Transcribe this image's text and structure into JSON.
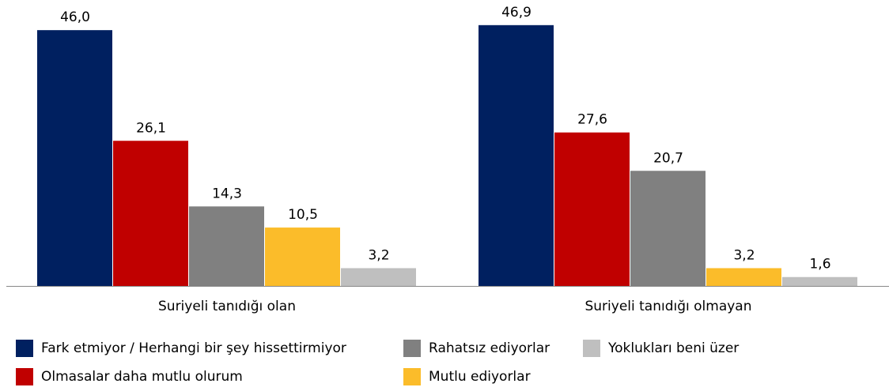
{
  "chart_data": {
    "type": "bar",
    "categories": [
      "Suriyeli tanıdığı olan",
      "Suriyeli tanıdığı olmayan"
    ],
    "series": [
      {
        "name": "Fark etmiyor / Herhangi bir şey hissettirmiyor",
        "color": "#002060",
        "values": [
          46.0,
          46.9
        ],
        "value_labels": [
          "46,0",
          "46,9"
        ]
      },
      {
        "name": "Olmasalar daha mutlu olurum",
        "color": "#c00000",
        "values": [
          26.1,
          27.6
        ],
        "value_labels": [
          "26,1",
          "27,6"
        ]
      },
      {
        "name": "Rahatsız ediyorlar",
        "color": "#808080",
        "values": [
          14.3,
          20.7
        ],
        "value_labels": [
          "14,3",
          "20,7"
        ]
      },
      {
        "name": "Mutlu ediyorlar",
        "color": "#fbbc2a",
        "values": [
          10.5,
          3.2
        ],
        "value_labels": [
          "10,5",
          "3,2"
        ]
      },
      {
        "name": "Yoklukları beni üzer",
        "color": "#bfbfbf",
        "values": [
          3.2,
          1.6
        ],
        "value_labels": [
          "3,2",
          "1,6"
        ]
      }
    ],
    "ylim": [
      0,
      50
    ],
    "legend": "bottom"
  }
}
